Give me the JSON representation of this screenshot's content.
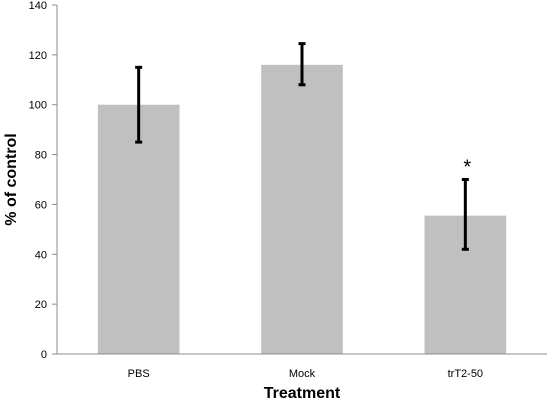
{
  "chart_data": {
    "type": "bar",
    "categories": [
      "PBS",
      "Mock",
      "trT2-50"
    ],
    "values": [
      100,
      116,
      55.5
    ],
    "error_low": [
      85,
      108,
      42
    ],
    "error_high": [
      115,
      124.5,
      70
    ],
    "annotations": [
      "",
      "",
      "*"
    ],
    "xlabel": "Treatment",
    "ylabel": "% of control",
    "ylim": [
      0,
      140
    ],
    "yticks": [
      0,
      20,
      40,
      60,
      80,
      100,
      120,
      140
    ],
    "grid": false,
    "bar_color": "#c0c0c0",
    "error_color": "#000000"
  }
}
